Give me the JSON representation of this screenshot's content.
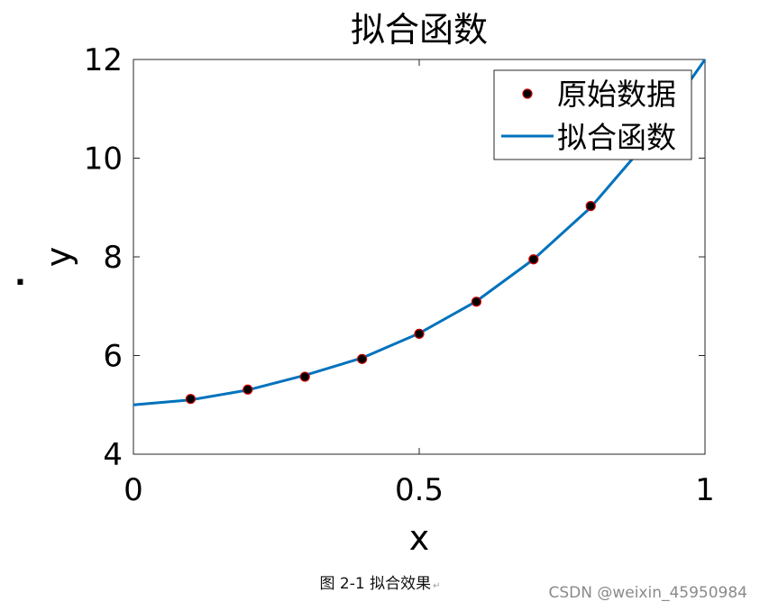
{
  "chart_data": {
    "type": "scatter",
    "title": "拟合函数",
    "xlabel": "x",
    "ylabel": "y",
    "xlim": [
      0,
      1
    ],
    "ylim": [
      4,
      12
    ],
    "xticks": [
      0,
      0.5,
      1
    ],
    "xtick_labels": [
      "0",
      "0.5",
      "1"
    ],
    "yticks": [
      4,
      6,
      8,
      10,
      12
    ],
    "ytick_labels": [
      "4",
      "6",
      "8",
      "10",
      "12"
    ],
    "grid": false,
    "legend_position": "top-right",
    "series": [
      {
        "name": "原始数据",
        "kind": "scatter",
        "marker_color": "#000000",
        "edge_color": "#cc0000",
        "x": [
          0.1,
          0.2,
          0.3,
          0.4,
          0.5,
          0.6,
          0.7,
          0.8
        ],
        "y": [
          5.12,
          5.31,
          5.57,
          5.93,
          6.44,
          7.09,
          7.95,
          9.03
        ]
      },
      {
        "name": "拟合函数",
        "kind": "line",
        "color": "#0072bd",
        "x": [
          0,
          0.1,
          0.2,
          0.3,
          0.4,
          0.5,
          0.6,
          0.7,
          0.8,
          0.9,
          1.0
        ],
        "y": [
          5.0,
          5.1,
          5.3,
          5.6,
          5.95,
          6.45,
          7.1,
          7.95,
          9.0,
          10.35,
          12.0
        ]
      }
    ]
  },
  "stray_mark": ".",
  "caption": {
    "text": "图 2-1 拟合效果",
    "mark": "↵"
  },
  "watermark": "CSDN @weixin_45950984"
}
